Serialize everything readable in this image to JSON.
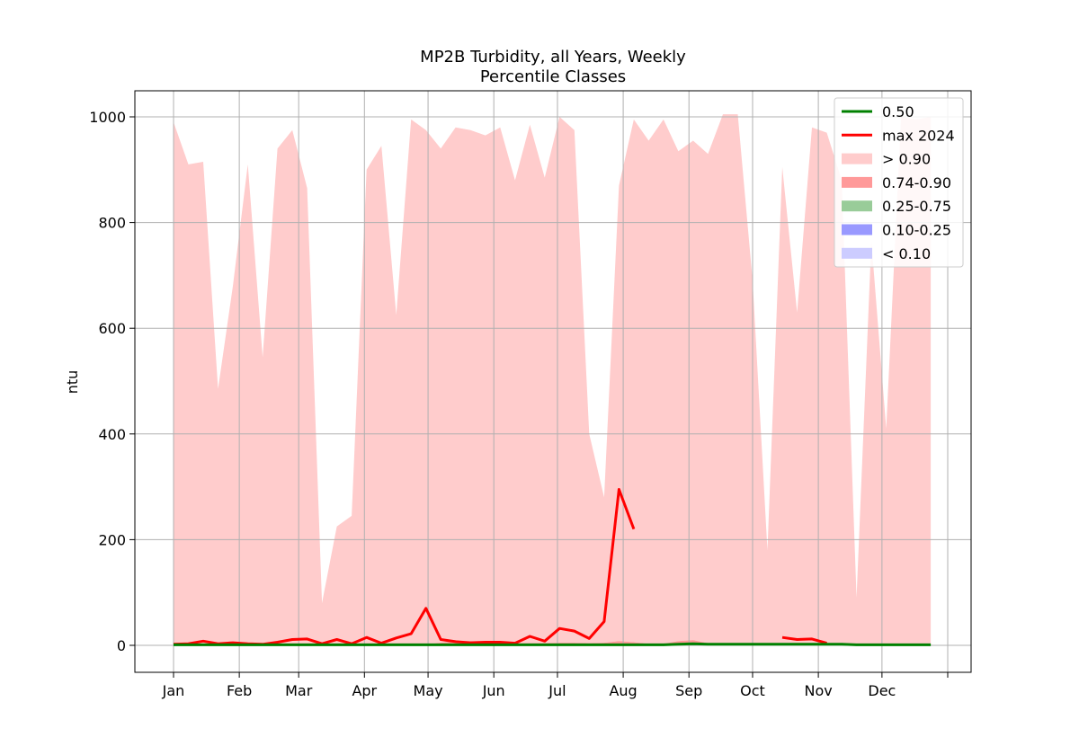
{
  "chart_data": {
    "type": "area",
    "title": "MP2B Turbidity, all Years, Weekly",
    "subtitle": "Percentile Classes",
    "xlabel": "",
    "ylabel": "ntu",
    "ylim": [
      -50,
      1050
    ],
    "yticks": [
      0,
      200,
      400,
      600,
      800,
      1000
    ],
    "xlim": [
      0,
      365
    ],
    "x_ticks": [
      {
        "label": "Jan",
        "day": 0
      },
      {
        "label": "Feb",
        "day": 31
      },
      {
        "label": "Mar",
        "day": 59
      },
      {
        "label": "Apr",
        "day": 90
      },
      {
        "label": "May",
        "day": 120
      },
      {
        "label": "Jun",
        "day": 151
      },
      {
        "label": "Jul",
        "day": 181
      },
      {
        "label": "Aug",
        "day": 212
      },
      {
        "label": "Sep",
        "day": 243
      },
      {
        "label": "Oct",
        "day": 273
      },
      {
        "label": "Nov",
        "day": 304
      },
      {
        "label": "Dec",
        "day": 334
      },
      {
        "label": "",
        "day": 365
      }
    ],
    "grid": true,
    "legend_position": "top-right",
    "x": [
      0,
      7,
      14,
      21,
      28,
      35,
      42,
      49,
      56,
      63,
      70,
      77,
      84,
      91,
      98,
      105,
      112,
      119,
      126,
      133,
      140,
      147,
      154,
      161,
      168,
      175,
      182,
      189,
      196,
      203,
      210,
      217,
      224,
      231,
      238,
      245,
      252,
      259,
      266,
      273,
      280,
      287,
      294,
      301,
      308,
      315,
      322,
      329,
      336,
      343,
      350,
      357
    ],
    "series": [
      {
        "name": "0.50",
        "kind": "line",
        "color": "#008000",
        "values": [
          1,
          1,
          1,
          1,
          1,
          1,
          1,
          1,
          1,
          1,
          1,
          1,
          1,
          1,
          1,
          1,
          1,
          1,
          1,
          1,
          1,
          1,
          1,
          1,
          1,
          1,
          1,
          1,
          1,
          1,
          1,
          1,
          1,
          1,
          2,
          3,
          2,
          2,
          2,
          2,
          2,
          2,
          2,
          2,
          2,
          2,
          1,
          1,
          1,
          1,
          1,
          1
        ]
      },
      {
        "name": "max 2024",
        "kind": "line",
        "color": "#ff0000",
        "values": [
          2,
          3,
          8,
          3,
          5,
          3,
          2,
          6,
          11,
          12,
          3,
          11,
          3,
          15,
          4,
          14,
          22,
          70,
          11,
          7,
          5,
          6,
          6,
          4,
          17,
          8,
          32,
          27,
          13,
          45,
          295,
          220,
          null,
          null,
          null,
          null,
          null,
          null,
          null,
          null,
          null,
          15,
          11,
          12,
          4,
          null,
          null,
          null,
          null,
          null,
          null,
          null
        ]
      },
      {
        "name": "> 0.90",
        "kind": "band",
        "color": "#ffcccc",
        "lower": [
          2,
          2,
          2,
          2,
          2,
          2,
          2,
          2,
          2,
          2,
          2,
          2,
          2,
          2,
          2,
          2,
          2,
          2,
          5,
          8,
          8,
          8,
          6,
          4,
          4,
          4,
          5,
          5,
          4,
          5,
          8,
          6,
          3,
          3,
          8,
          10,
          4,
          3,
          3,
          3,
          3,
          3,
          4,
          4,
          3,
          3,
          2,
          2,
          2,
          2,
          2,
          2
        ],
        "upper": [
          990,
          910,
          915,
          485,
          680,
          910,
          545,
          940,
          975,
          865,
          80,
          225,
          245,
          900,
          945,
          625,
          995,
          975,
          940,
          980,
          975,
          965,
          980,
          880,
          985,
          885,
          1000,
          975,
          400,
          280,
          870,
          995,
          955,
          995,
          935,
          955,
          930,
          1005,
          1005,
          690,
          180,
          905,
          630,
          980,
          970,
          880,
          90,
          765,
          410,
          1000,
          995,
          1000
        ]
      },
      {
        "name": "0.74-0.90",
        "kind": "band",
        "color": "#ff9999",
        "lower": [
          1,
          1,
          1,
          1,
          1,
          1,
          1,
          1,
          1,
          1,
          1,
          1,
          1,
          1,
          1,
          1,
          1,
          1,
          1,
          1,
          1,
          1,
          1,
          1,
          1,
          1,
          1,
          1,
          1,
          1,
          1,
          1,
          1,
          1,
          2,
          3,
          2,
          2,
          2,
          2,
          2,
          2,
          2,
          2,
          2,
          2,
          1,
          1,
          1,
          1,
          1,
          1
        ],
        "upper": [
          2,
          2,
          2,
          2,
          2,
          2,
          2,
          2,
          2,
          2,
          2,
          2,
          2,
          2,
          2,
          2,
          2,
          2,
          5,
          8,
          8,
          8,
          6,
          4,
          4,
          4,
          5,
          5,
          4,
          5,
          8,
          6,
          3,
          3,
          8,
          10,
          4,
          3,
          3,
          3,
          3,
          3,
          4,
          4,
          3,
          3,
          2,
          2,
          2,
          2,
          2,
          2
        ]
      },
      {
        "name": "0.25-0.75",
        "kind": "band",
        "color": "#99cc99",
        "lower": [],
        "upper": []
      },
      {
        "name": "0.10-0.25",
        "kind": "band",
        "color": "#9999ff",
        "lower": [],
        "upper": []
      },
      {
        "name": "< 0.10",
        "kind": "band",
        "color": "#ccccff",
        "lower": [],
        "upper": []
      }
    ]
  }
}
